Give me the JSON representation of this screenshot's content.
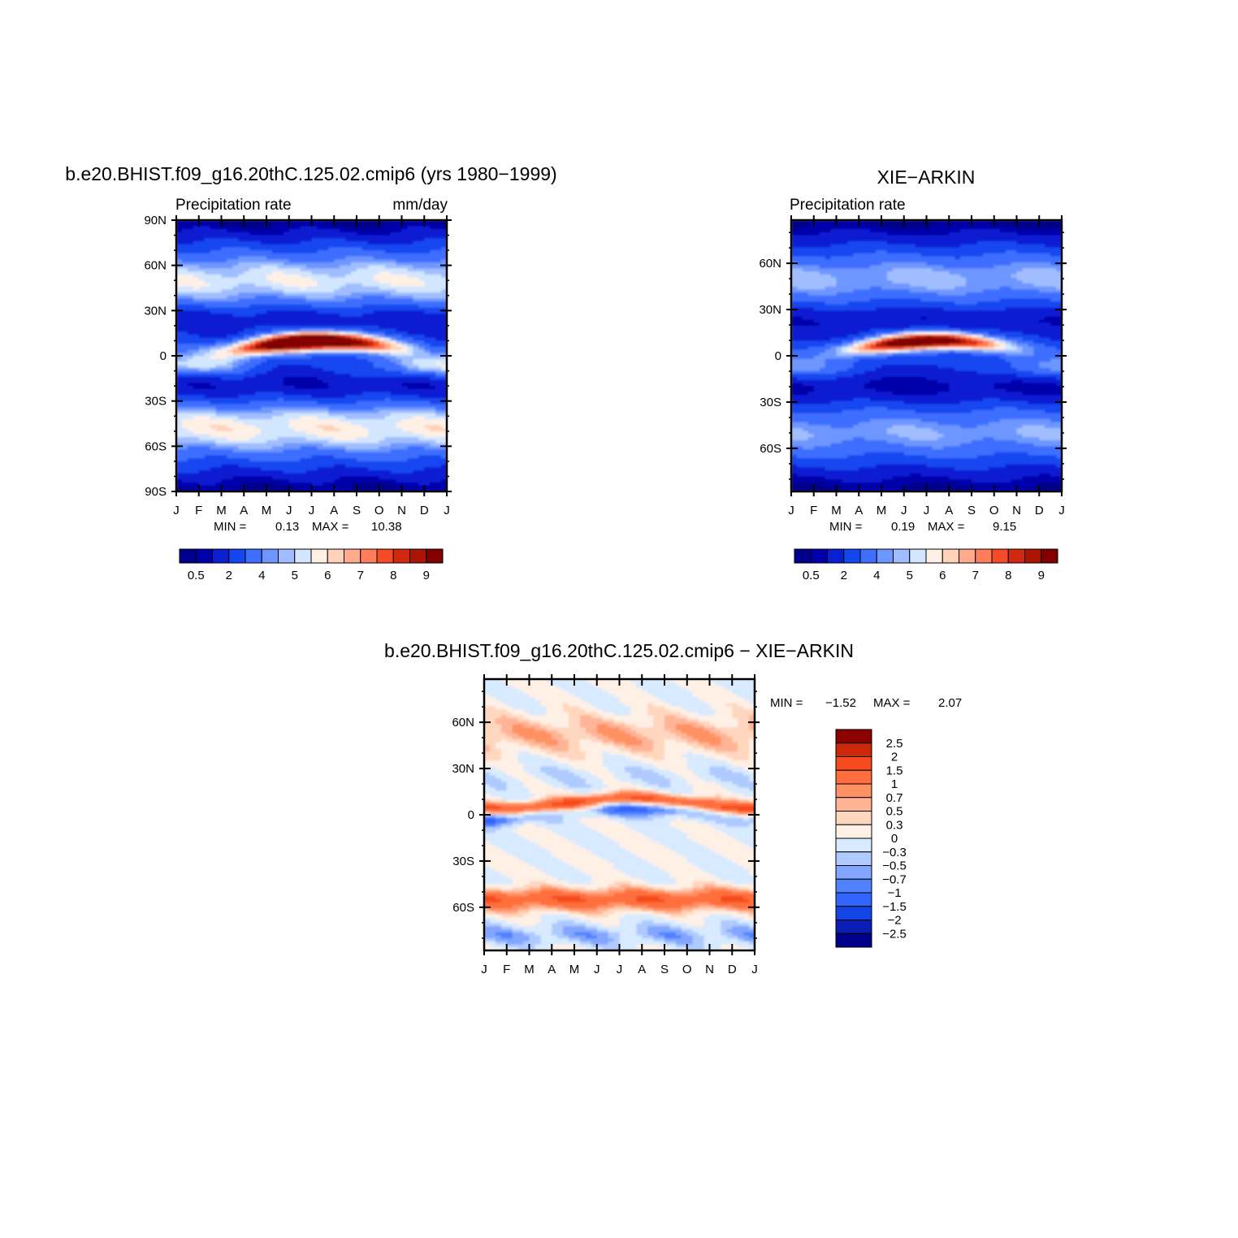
{
  "palette_abs": [
    "#00008c",
    "#0000aa",
    "#0a1ed2",
    "#1446f0",
    "#3c6eff",
    "#6e96ff",
    "#a0beff",
    "#d2e6ff",
    "#fff0e6",
    "#ffd2b9",
    "#ffaa8c",
    "#ff7d5a",
    "#f54b28",
    "#d2280f",
    "#aa1405",
    "#820000"
  ],
  "palette_diff": [
    "#00008c",
    "#0a1eb4",
    "#1446e6",
    "#3264ff",
    "#5082ff",
    "#82a5ff",
    "#afcaff",
    "#d7eaff",
    "#fff0e6",
    "#ffd7be",
    "#ffb496",
    "#ff9164",
    "#ff6e3c",
    "#f54b1e",
    "#cd280a",
    "#8c0000"
  ],
  "chart_data": [
    {
      "type": "heatmap",
      "title": "b.e20.BHIST.f09_g16.20thC.125.02.cmip6 (yrs 1980−1999)",
      "subtitle_left": "Precipitation  rate",
      "subtitle_right": "mm/day",
      "x_ticks": [
        "J",
        "F",
        "M",
        "A",
        "M",
        "J",
        "J",
        "A",
        "S",
        "O",
        "N",
        "D",
        "J"
      ],
      "y_ticks": [
        "90N",
        "60N",
        "30N",
        "0",
        "30S",
        "60S",
        "90S"
      ],
      "ylim": [
        -90,
        90
      ],
      "min_label": "MIN  =",
      "min_value": "0.13",
      "max_label": "MAX  =",
      "max_value": "10.38",
      "colorbar_labels": [
        "0.5",
        "2",
        "4",
        "5",
        "6",
        "7",
        "8",
        "9"
      ],
      "colorbar_levels": [
        0.5,
        1,
        2,
        3,
        4,
        4.5,
        5,
        5.5,
        6,
        6.5,
        7,
        7.5,
        8,
        8.5,
        9
      ],
      "data_min": 0.13,
      "data_max": 10.38
    },
    {
      "type": "heatmap",
      "title": "XIE−ARKIN",
      "subtitle_left": "Precipitation  rate",
      "x_ticks": [
        "J",
        "F",
        "M",
        "A",
        "M",
        "J",
        "J",
        "A",
        "S",
        "O",
        "N",
        "D",
        "J"
      ],
      "y_ticks": [
        "60N",
        "30N",
        "0",
        "30S",
        "60S"
      ],
      "ylim": [
        -88,
        88
      ],
      "min_label": "MIN  =",
      "min_value": "0.19",
      "max_label": "MAX  =",
      "max_value": "9.15",
      "colorbar_labels": [
        "0.5",
        "2",
        "4",
        "5",
        "6",
        "7",
        "8",
        "9"
      ],
      "colorbar_levels": [
        0.5,
        1,
        2,
        3,
        4,
        4.5,
        5,
        5.5,
        6,
        6.5,
        7,
        7.5,
        8,
        8.5,
        9
      ],
      "data_min": 0.19,
      "data_max": 9.15
    },
    {
      "type": "heatmap",
      "title": "b.e20.BHIST.f09_g16.20thC.125.02.cmip6  −  XIE−ARKIN",
      "x_ticks": [
        "J",
        "F",
        "M",
        "A",
        "M",
        "J",
        "J",
        "A",
        "S",
        "O",
        "N",
        "D",
        "J"
      ],
      "y_ticks": [
        "60N",
        "30N",
        "0",
        "30S",
        "60S"
      ],
      "ylim": [
        -88,
        88
      ],
      "min_label": "MIN  =",
      "min_value": "−1.52",
      "max_label": "MAX  =",
      "max_value": "2.07",
      "colorbar_labels": [
        "2.5",
        "2",
        "1.5",
        "1",
        "0.7",
        "0.5",
        "0.3",
        "0",
        "−0.3",
        "−0.5",
        "−0.7",
        "−1",
        "−1.5",
        "−2",
        "−2.5"
      ],
      "colorbar_levels": [
        -2.5,
        -2,
        -1.5,
        -1,
        -0.7,
        -0.5,
        -0.3,
        0,
        0.3,
        0.5,
        0.7,
        1,
        1.5,
        2,
        2.5
      ],
      "data_min": -1.52,
      "data_max": 2.07
    }
  ]
}
